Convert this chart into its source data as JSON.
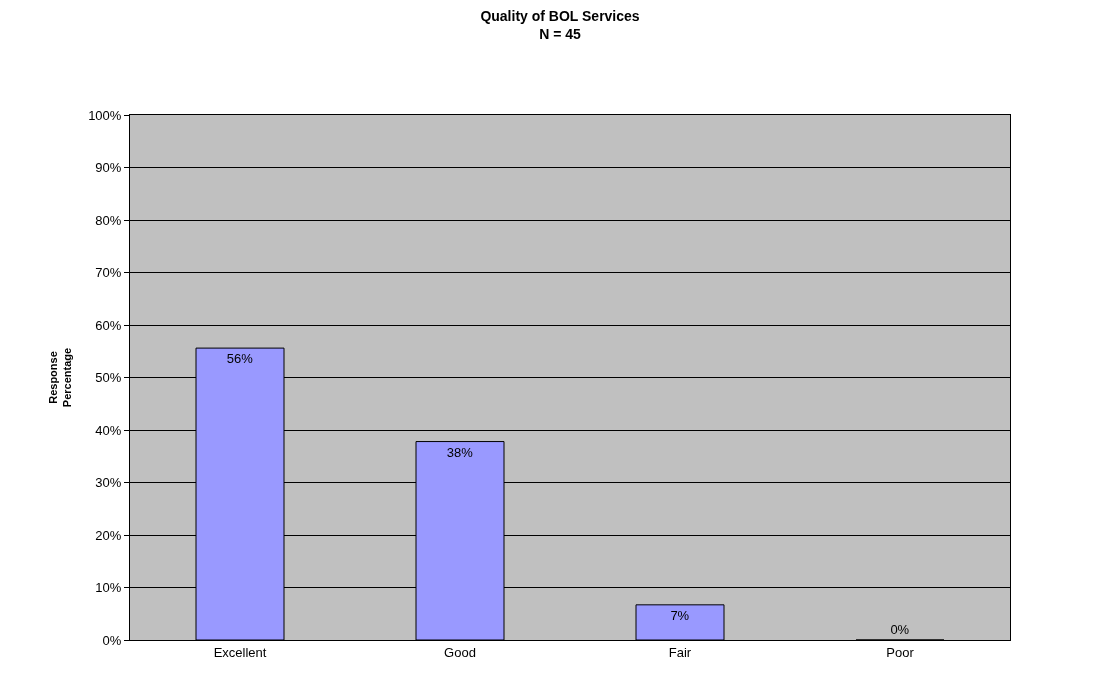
{
  "chart_data": {
    "type": "bar",
    "title": "Quality of BOL Services",
    "subtitle": "N = 45",
    "ylabel": "Response\nPercentage",
    "categories": [
      "Excellent",
      "Good",
      "Fair",
      "Poor"
    ],
    "values": [
      55.6,
      37.8,
      6.7,
      0
    ],
    "value_labels": [
      "56%",
      "38%",
      "7%",
      "0%"
    ],
    "color": "#9999ff",
    "ylim": [
      0,
      100
    ],
    "yticks": [
      {
        "value": 0,
        "label": "0%"
      },
      {
        "value": 10,
        "label": "10%"
      },
      {
        "value": 20,
        "label": "20%"
      },
      {
        "value": 30,
        "label": "30%"
      },
      {
        "value": 40,
        "label": "40%"
      },
      {
        "value": 50,
        "label": "50%"
      },
      {
        "value": 60,
        "label": "60%"
      },
      {
        "value": 70,
        "label": "70%"
      },
      {
        "value": 80,
        "label": "80%"
      },
      {
        "value": 90,
        "label": "90%"
      },
      {
        "value": 100,
        "label": "100%"
      }
    ],
    "grid": "y"
  }
}
